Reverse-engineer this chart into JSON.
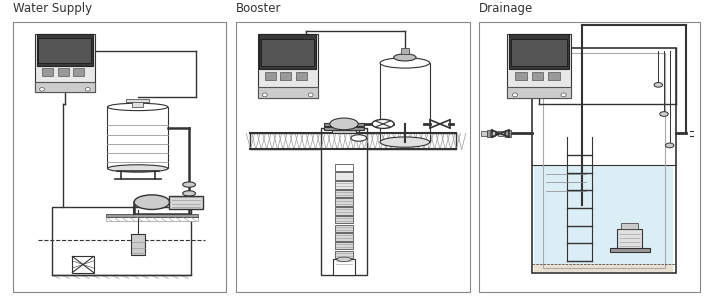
{
  "bg_color": "#ffffff",
  "panel1_title": "Water Supply",
  "panel2_title": "Booster",
  "panel3_title": "Drainage",
  "title_fontsize": 8.5,
  "dc": "#333333",
  "gl": "#cccccc",
  "gm": "#999999",
  "gd": "#666666",
  "panel_edge": "#888888",
  "p1": [
    0.018,
    0.04,
    0.3,
    0.92
  ],
  "p2": [
    0.332,
    0.04,
    0.33,
    0.92
  ],
  "p3": [
    0.674,
    0.04,
    0.312,
    0.92
  ]
}
